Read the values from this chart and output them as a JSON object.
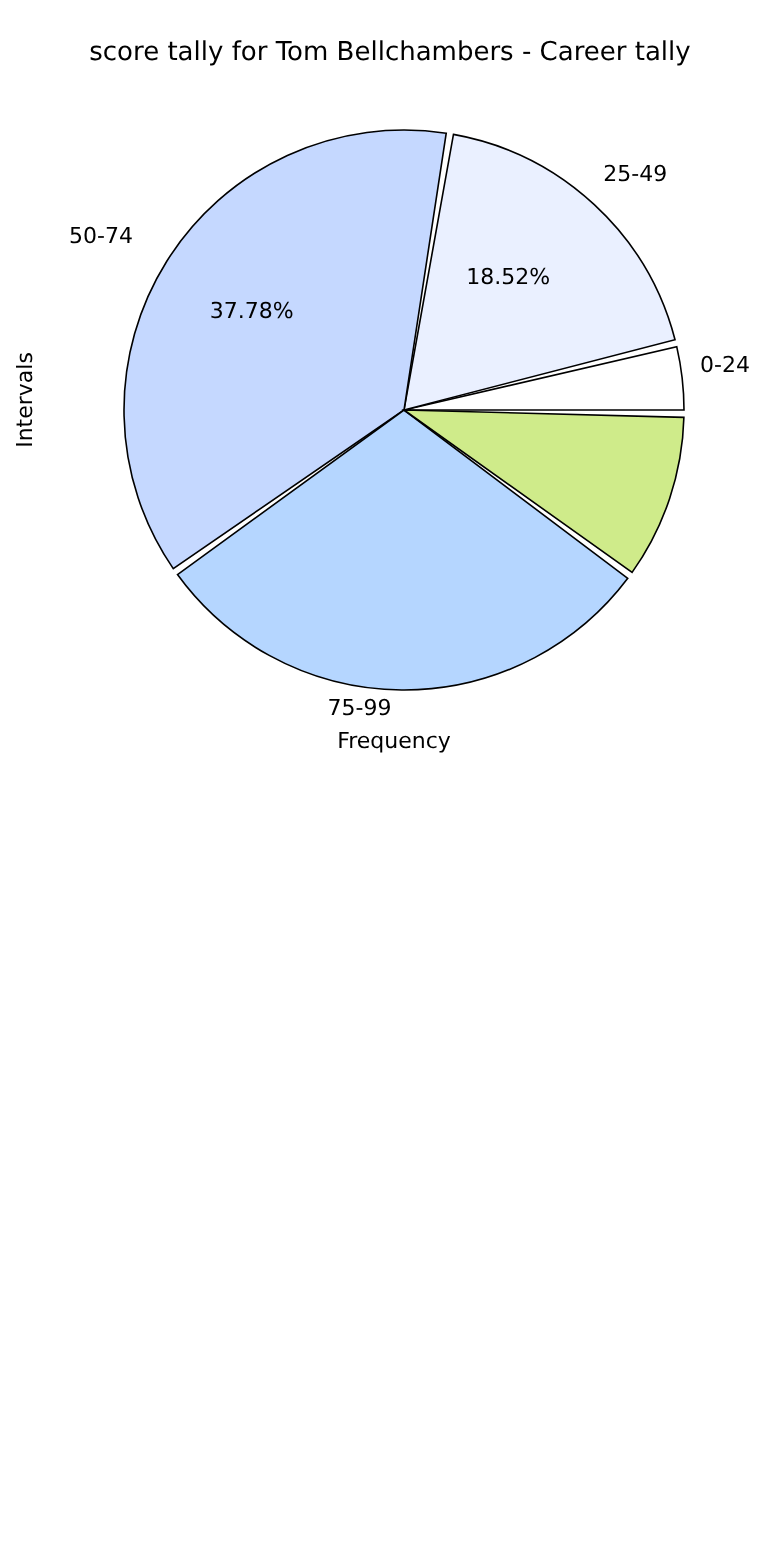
{
  "chart_data": {
    "type": "pie",
    "title": "score tally for Tom Bellchambers - Career tally",
    "xlabel": "Frequency",
    "ylabel": "Intervals",
    "categories": [
      "0-24",
      "25-49",
      "50-74",
      "75-99",
      null
    ],
    "values": [
      3.7,
      18.52,
      37.78,
      30.37,
      9.63
    ],
    "colors": [
      "#ffffff",
      "#eaf0ff",
      "#c5d8ff",
      "#b5d6ff",
      "#cfeb8a"
    ],
    "value_labels": [
      null,
      "18.52%",
      "37.78%",
      null,
      null
    ]
  }
}
